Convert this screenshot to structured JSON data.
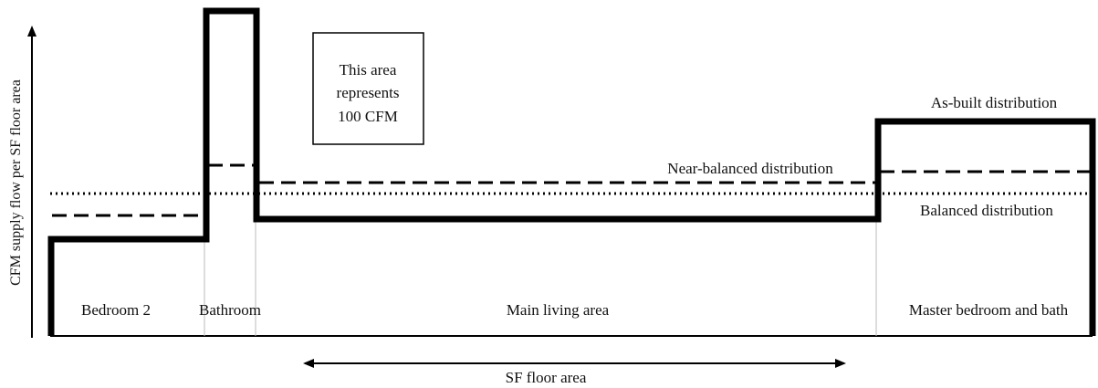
{
  "y_axis_label": "CFM supply flow per SF floor area",
  "x_axis_label": "SF floor area",
  "rooms": [
    "Bedroom 2",
    "Bathroom",
    "Main living area",
    "Master bedroom and bath"
  ],
  "scale_box": {
    "line1": "This area",
    "line2": "represents",
    "line3": "100 CFM"
  },
  "series_labels": {
    "as_built": "As-built distribution",
    "near_balanced": "Near-balanced distribution",
    "balanced": "Balanced distribution"
  },
  "colors": {
    "line": "#000000",
    "divider": "#bbbbbb",
    "background": "#ffffff"
  }
}
